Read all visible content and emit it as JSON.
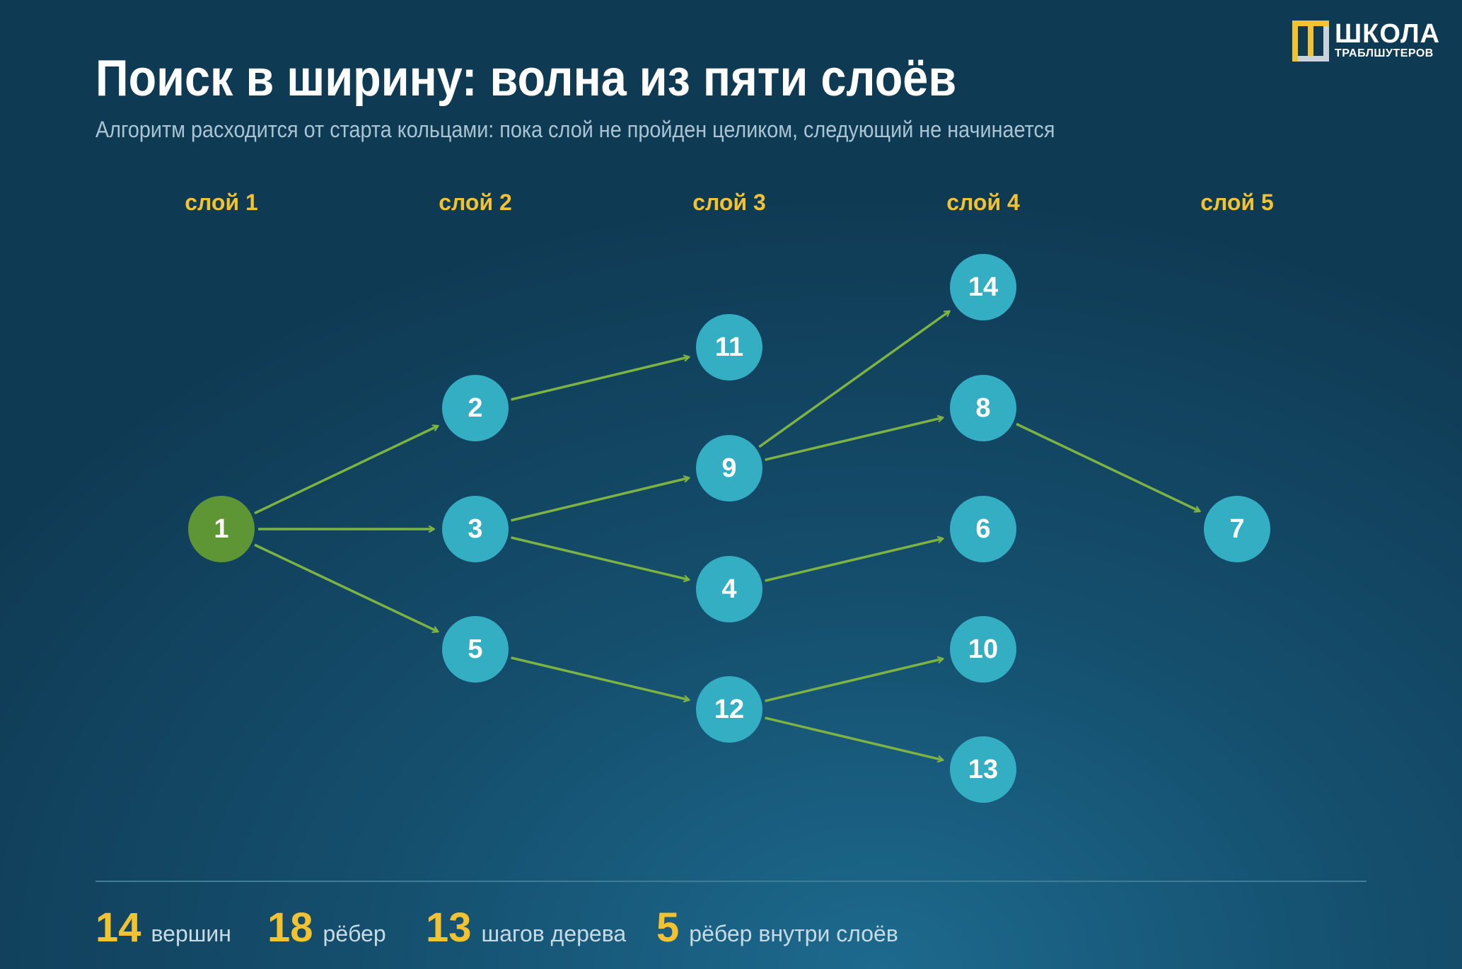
{
  "header": {
    "title": "Поиск в ширину: волна из пяти слоёв",
    "subtitle": "Алгоритм расходится от старта кольцами: пока слой не пройден целиком, следующий не начинается"
  },
  "logo": {
    "line1": "ШКОЛА",
    "line2": "ТРАБЛШУТЕРОВ"
  },
  "layers": [
    "слой 1",
    "слой 2",
    "слой 3",
    "слой 4",
    "слой 5"
  ],
  "colors": {
    "start_node": "#5e9535",
    "node": "#34aec3",
    "edge": "#7cb342",
    "accent": "#f2c230"
  },
  "graph": {
    "start": "1",
    "nodes": [
      {
        "id": "1",
        "label": "1",
        "layer": 1
      },
      {
        "id": "2",
        "label": "2",
        "layer": 2
      },
      {
        "id": "3",
        "label": "3",
        "layer": 2
      },
      {
        "id": "5",
        "label": "5",
        "layer": 2
      },
      {
        "id": "11",
        "label": "11",
        "layer": 3
      },
      {
        "id": "9",
        "label": "9",
        "layer": 3
      },
      {
        "id": "4",
        "label": "4",
        "layer": 3
      },
      {
        "id": "12",
        "label": "12",
        "layer": 3
      },
      {
        "id": "14",
        "label": "14",
        "layer": 4
      },
      {
        "id": "8",
        "label": "8",
        "layer": 4
      },
      {
        "id": "6",
        "label": "6",
        "layer": 4
      },
      {
        "id": "10",
        "label": "10",
        "layer": 4
      },
      {
        "id": "13",
        "label": "13",
        "layer": 4
      },
      {
        "id": "7",
        "label": "7",
        "layer": 5
      }
    ],
    "edges": [
      {
        "from": "1",
        "to": "2"
      },
      {
        "from": "1",
        "to": "3"
      },
      {
        "from": "1",
        "to": "5"
      },
      {
        "from": "2",
        "to": "11"
      },
      {
        "from": "3",
        "to": "9"
      },
      {
        "from": "3",
        "to": "4"
      },
      {
        "from": "5",
        "to": "12"
      },
      {
        "from": "9",
        "to": "14"
      },
      {
        "from": "9",
        "to": "8"
      },
      {
        "from": "4",
        "to": "6"
      },
      {
        "from": "12",
        "to": "10"
      },
      {
        "from": "12",
        "to": "13"
      },
      {
        "from": "8",
        "to": "7"
      }
    ]
  },
  "stats": [
    {
      "value": "14",
      "label": "вершин"
    },
    {
      "value": "18",
      "label": "рёбер"
    },
    {
      "value": "13",
      "label": "шагов дерева"
    },
    {
      "value": "5",
      "label": "рёбер внутри слоёв"
    }
  ]
}
